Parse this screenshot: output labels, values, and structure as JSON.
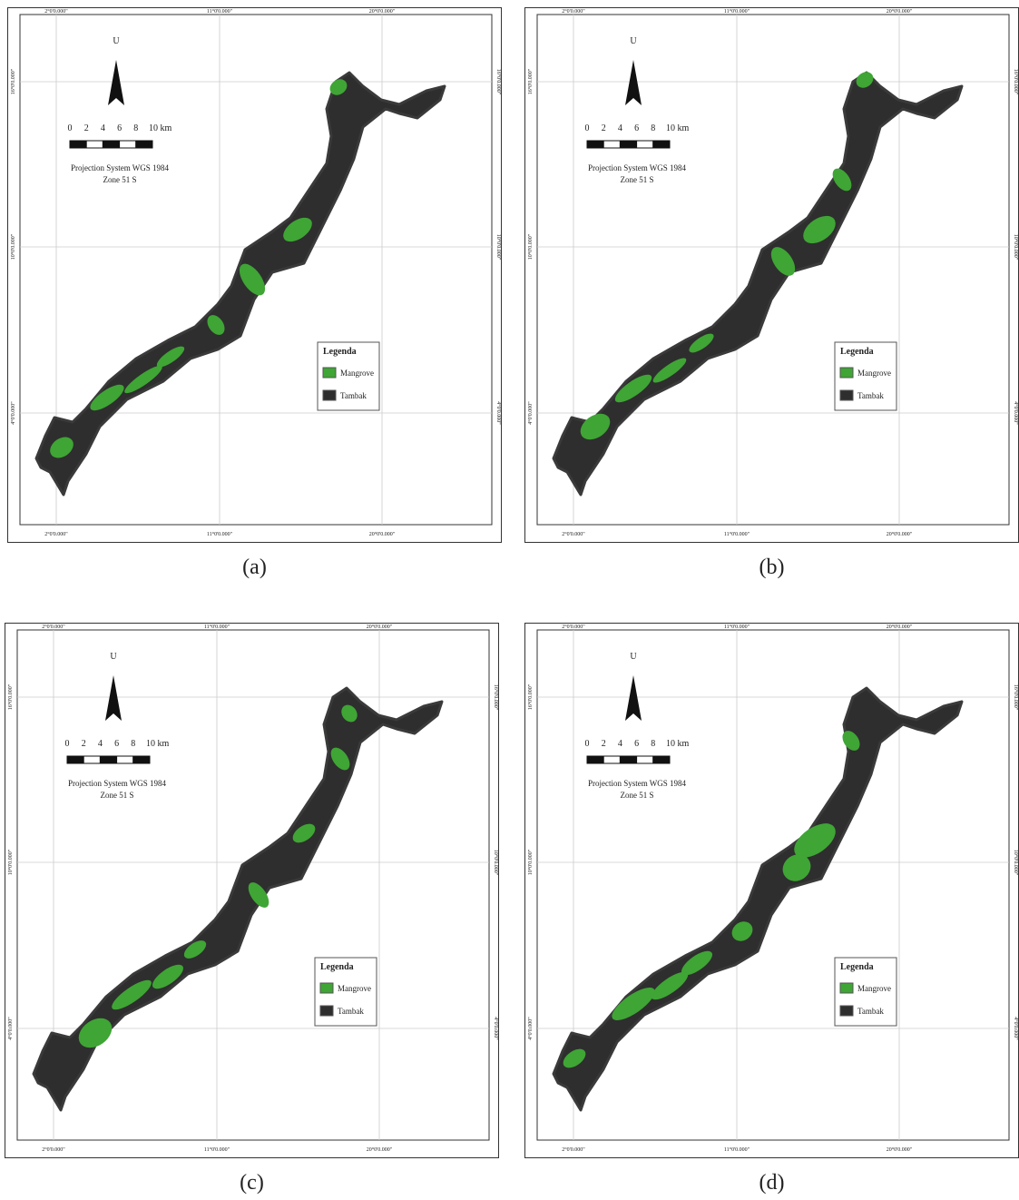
{
  "panels": [
    {
      "caption": "(a)",
      "north": "U",
      "scale_labels": [
        "0",
        "2",
        "4",
        "6",
        "8",
        "10 km"
      ],
      "projection": [
        "Projection System WGS 1984",
        "Zone 51 S"
      ],
      "legend": {
        "title": "Legenda",
        "items": [
          "Mangrove",
          "Tambak"
        ]
      },
      "x_labels_top": [
        "2°0'0.000\"",
        "11°0'0.000\"",
        "20°0'0.000\""
      ],
      "x_labels_bottom": [
        "2°0'0.000\"",
        "11°0'0.000\"",
        "20°0'0.000\""
      ],
      "y_labels_left": [
        "16°0'0.000\"",
        "10°0'0.000\"",
        "4°0'0.000\""
      ],
      "y_labels_right": [
        "16°0'0.000\"",
        "10°0'0.000\"",
        "4°0'0.000\""
      ]
    },
    {
      "caption": "(b)",
      "north": "U",
      "scale_labels": [
        "0",
        "2",
        "4",
        "6",
        "8",
        "10 km"
      ],
      "projection": [
        "Projection System WGS 1984",
        "Zone 51 S"
      ],
      "legend": {
        "title": "Legenda",
        "items": [
          "Mangrove",
          "Tambak"
        ]
      },
      "x_labels_top": [
        "2°0'0.000\"",
        "11°0'0.000\"",
        "20°0'0.000\""
      ],
      "x_labels_bottom": [
        "2°0'0.000\"",
        "11°0'0.000\"",
        "20°0'0.000\""
      ],
      "y_labels_left": [
        "16°0'0.000\"",
        "10°0'0.000\"",
        "4°0'0.000\""
      ],
      "y_labels_right": [
        "16°0'0.000\"",
        "10°0'0.000\"",
        "4°0'0.000\""
      ]
    },
    {
      "caption": "(c)",
      "north": "U",
      "scale_labels": [
        "0",
        "2",
        "4",
        "6",
        "8",
        "10 km"
      ],
      "projection": [
        "Projection System WGS 1984",
        "Zone 51 S"
      ],
      "legend": {
        "title": "Legenda",
        "items": [
          "Mangrove",
          "Tambak"
        ]
      },
      "x_labels_top": [
        "2°0'0.000\"",
        "11°0'0.000\"",
        "20°0'0.000\""
      ],
      "x_labels_bottom": [
        "2°0'0.000\"",
        "11°0'0.000\"",
        "20°0'0.000\""
      ],
      "y_labels_left": [
        "16°0'0.000\"",
        "10°0'0.000\"",
        "4°0'0.000\""
      ],
      "y_labels_right": [
        "16°0'0.000\"",
        "10°0'0.000\"",
        "4°0'0.000\""
      ]
    },
    {
      "caption": "(d)",
      "north": "U",
      "scale_labels": [
        "0",
        "2",
        "4",
        "6",
        "8",
        "10 km"
      ],
      "projection": [
        "Projection System WGS 1984",
        "Zone 51 S"
      ],
      "legend": {
        "title": "Legenda",
        "items": [
          "Mangrove",
          "Tambak"
        ]
      },
      "x_labels_top": [
        "2°0'0.000\"",
        "11°0'0.000\"",
        "20°0'0.000\""
      ],
      "x_labels_bottom": [
        "2°0'0.000\"",
        "11°0'0.000\"",
        "20°0'0.000\""
      ],
      "y_labels_left": [
        "16°0'0.000\"",
        "10°0'0.000\"",
        "4°0'0.000\""
      ],
      "y_labels_right": [
        "16°0'0.000\"",
        "10°0'0.000\"",
        "4°0'0.000\""
      ]
    }
  ]
}
